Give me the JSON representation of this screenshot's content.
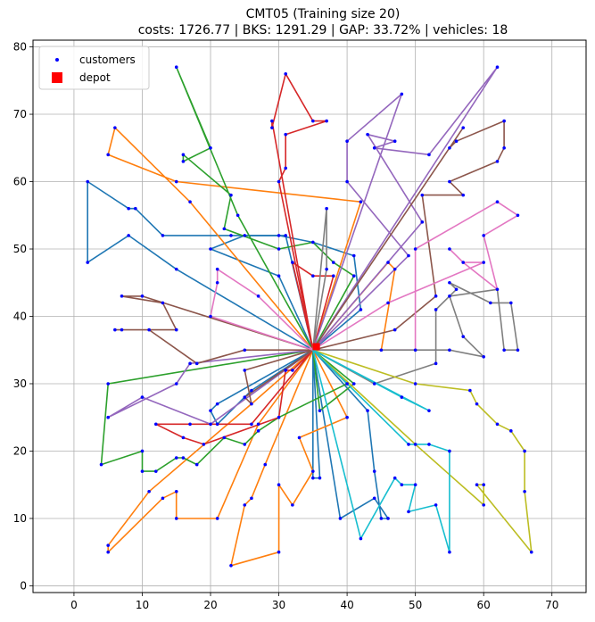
{
  "chart_data": {
    "type": "scatter",
    "title": "CMT05 (Training size 20)",
    "subtitle": "costs: 1726.77 | BKS: 1291.29 | GAP: 33.72% | vehicles: 18",
    "xlabel": "",
    "ylabel": "",
    "xlim": [
      -6,
      75
    ],
    "ylim": [
      -1,
      81
    ],
    "xticks": [
      0,
      10,
      20,
      30,
      40,
      50,
      60,
      70
    ],
    "yticks": [
      0,
      10,
      20,
      30,
      40,
      50,
      60,
      70,
      80
    ],
    "grid": true,
    "legend": {
      "placement": "top-left",
      "entries": [
        {
          "label": "customers",
          "color": "#0000ff",
          "marker": "dot"
        },
        {
          "label": "depot",
          "color": "#ff0000",
          "marker": "square"
        }
      ]
    },
    "depot": {
      "x": 35.5,
      "y": 35.5
    },
    "routes": [
      {
        "color": "#1f77b4",
        "points": [
          [
            35,
            35
          ],
          [
            15,
            47
          ],
          [
            8,
            52
          ],
          [
            2,
            48
          ],
          [
            2,
            60
          ],
          [
            8,
            56
          ],
          [
            9,
            56
          ],
          [
            13,
            52
          ],
          [
            23,
            52
          ],
          [
            30,
            52
          ],
          [
            35,
            51
          ],
          [
            41,
            49
          ],
          [
            42,
            41
          ],
          [
            35,
            35
          ]
        ]
      },
      {
        "color": "#1f77b4",
        "points": [
          [
            35,
            35
          ],
          [
            36,
            16
          ],
          [
            35,
            16
          ],
          [
            35,
            35
          ],
          [
            43,
            26
          ],
          [
            44,
            17
          ],
          [
            45,
            10
          ],
          [
            46,
            10
          ],
          [
            44,
            13
          ],
          [
            39,
            10
          ],
          [
            35,
            35
          ]
        ]
      },
      {
        "color": "#1f77b4",
        "points": [
          [
            35,
            35
          ],
          [
            26,
            29
          ],
          [
            21,
            24
          ],
          [
            20,
            26
          ],
          [
            21,
            27
          ],
          [
            35,
            35
          ]
        ]
      },
      {
        "color": "#1f77b4",
        "points": [
          [
            35,
            35
          ],
          [
            30,
            46
          ],
          [
            20,
            50
          ],
          [
            25,
            52
          ],
          [
            31,
            52
          ],
          [
            35,
            35
          ]
        ]
      },
      {
        "color": "#ff7f0e",
        "points": [
          [
            35,
            35
          ],
          [
            40,
            25
          ],
          [
            33,
            22
          ],
          [
            35,
            17
          ],
          [
            32,
            12
          ],
          [
            30,
            15
          ],
          [
            30,
            5
          ],
          [
            23,
            3
          ],
          [
            25,
            12
          ],
          [
            26,
            13
          ],
          [
            28,
            18
          ],
          [
            35,
            35
          ]
        ]
      },
      {
        "color": "#ff7f0e",
        "points": [
          [
            35,
            35
          ],
          [
            42,
            57
          ],
          [
            15,
            60
          ],
          [
            5,
            64
          ],
          [
            6,
            68
          ],
          [
            17,
            57
          ],
          [
            35,
            35
          ]
        ]
      },
      {
        "color": "#ff7f0e",
        "points": [
          [
            35,
            35
          ],
          [
            27,
            24
          ],
          [
            21,
            10
          ],
          [
            15,
            10
          ],
          [
            15,
            14
          ],
          [
            13,
            13
          ],
          [
            5,
            5
          ],
          [
            5,
            6
          ],
          [
            11,
            14
          ],
          [
            26,
            27
          ],
          [
            35,
            35
          ]
        ]
      },
      {
        "color": "#ff7f0e",
        "points": [
          [
            35,
            35
          ],
          [
            45,
            35
          ],
          [
            47,
            47
          ],
          [
            46,
            48
          ],
          [
            35,
            35
          ]
        ]
      },
      {
        "color": "#2ca02c",
        "points": [
          [
            35,
            35
          ],
          [
            24,
            55
          ],
          [
            15,
            77
          ],
          [
            20,
            65
          ],
          [
            16,
            63
          ],
          [
            16,
            64
          ],
          [
            23,
            58
          ],
          [
            22,
            53
          ],
          [
            30,
            50
          ],
          [
            35,
            51
          ],
          [
            38,
            48
          ],
          [
            41,
            46
          ],
          [
            35,
            35
          ]
        ]
      },
      {
        "color": "#2ca02c",
        "points": [
          [
            35,
            35
          ],
          [
            5,
            30
          ],
          [
            4,
            18
          ],
          [
            10,
            20
          ],
          [
            10,
            17
          ],
          [
            12,
            17
          ],
          [
            15,
            19
          ],
          [
            16,
            19
          ],
          [
            18,
            18
          ],
          [
            22,
            22
          ],
          [
            25,
            21
          ],
          [
            27,
            23
          ],
          [
            30,
            25
          ],
          [
            40,
            30
          ],
          [
            35,
            35
          ]
        ]
      },
      {
        "color": "#2ca02c",
        "points": [
          [
            35,
            35
          ],
          [
            36,
            26
          ],
          [
            41,
            30
          ],
          [
            35,
            35
          ]
        ]
      },
      {
        "color": "#d62728",
        "points": [
          [
            35,
            35
          ],
          [
            29,
            69
          ],
          [
            29,
            68
          ],
          [
            31,
            76
          ],
          [
            35,
            69
          ],
          [
            37,
            69
          ],
          [
            31,
            67
          ],
          [
            31,
            62
          ],
          [
            30,
            60
          ],
          [
            35,
            35
          ]
        ]
      },
      {
        "color": "#d62728",
        "points": [
          [
            35,
            35
          ],
          [
            32,
            32
          ],
          [
            31,
            32
          ],
          [
            30,
            25
          ],
          [
            19,
            21
          ],
          [
            16,
            22
          ],
          [
            12,
            24
          ],
          [
            17,
            24
          ],
          [
            26,
            24
          ],
          [
            35,
            35
          ]
        ]
      },
      {
        "color": "#d62728",
        "points": [
          [
            35,
            35
          ],
          [
            32,
            48
          ],
          [
            35,
            46
          ],
          [
            38,
            46
          ],
          [
            35,
            35
          ]
        ]
      },
      {
        "color": "#9467bd",
        "points": [
          [
            35,
            35
          ],
          [
            48,
            73
          ],
          [
            40,
            66
          ],
          [
            40,
            60
          ],
          [
            49,
            49
          ],
          [
            35,
            35
          ]
        ]
      },
      {
        "color": "#9467bd",
        "points": [
          [
            35,
            35
          ],
          [
            62,
            77
          ],
          [
            52,
            64
          ],
          [
            44,
            65
          ],
          [
            47,
            66
          ],
          [
            43,
            67
          ],
          [
            51,
            54
          ],
          [
            35,
            35
          ]
        ]
      },
      {
        "color": "#9467bd",
        "points": [
          [
            35,
            35
          ],
          [
            17,
            33
          ],
          [
            15,
            30
          ],
          [
            5,
            25
          ],
          [
            10,
            28
          ],
          [
            20,
            24
          ],
          [
            35,
            35
          ]
        ]
      },
      {
        "color": "#8c564b",
        "points": [
          [
            35,
            35
          ],
          [
            10,
            43
          ],
          [
            7,
            43
          ],
          [
            13,
            42
          ],
          [
            15,
            38
          ],
          [
            7,
            38
          ],
          [
            6,
            38
          ],
          [
            11,
            38
          ],
          [
            18,
            33
          ],
          [
            25,
            35
          ],
          [
            35,
            35
          ]
        ]
      },
      {
        "color": "#8c564b",
        "points": [
          [
            35,
            35
          ],
          [
            25,
            32
          ],
          [
            26,
            27
          ],
          [
            25,
            28
          ],
          [
            35,
            35
          ]
        ]
      },
      {
        "color": "#8c564b",
        "points": [
          [
            35,
            35
          ],
          [
            57,
            68
          ],
          [
            55,
            65
          ],
          [
            56,
            66
          ],
          [
            63,
            69
          ],
          [
            63,
            65
          ],
          [
            62,
            63
          ],
          [
            55,
            60
          ],
          [
            57,
            58
          ],
          [
            51,
            58
          ],
          [
            53,
            43
          ],
          [
            47,
            38
          ],
          [
            35,
            35
          ]
        ]
      },
      {
        "color": "#e377c2",
        "points": [
          [
            35,
            35
          ],
          [
            20,
            40
          ],
          [
            21,
            45
          ],
          [
            21,
            47
          ],
          [
            27,
            43
          ],
          [
            35,
            35
          ]
        ]
      },
      {
        "color": "#e377c2",
        "points": [
          [
            35,
            35
          ],
          [
            50,
            35
          ],
          [
            50,
            50
          ],
          [
            62,
            57
          ],
          [
            65,
            55
          ],
          [
            60,
            52
          ],
          [
            62,
            44
          ],
          [
            57,
            48
          ],
          [
            55,
            50
          ],
          [
            57,
            48
          ],
          [
            60,
            48
          ],
          [
            46,
            42
          ],
          [
            35,
            35
          ]
        ]
      },
      {
        "color": "#7f7f7f",
        "points": [
          [
            35,
            35
          ],
          [
            37,
            56
          ],
          [
            37,
            47
          ],
          [
            35,
            35
          ]
        ]
      },
      {
        "color": "#7f7f7f",
        "points": [
          [
            35,
            35
          ],
          [
            44,
            30
          ],
          [
            53,
            33
          ],
          [
            53,
            41
          ],
          [
            56,
            44
          ],
          [
            55,
            45
          ],
          [
            61,
            42
          ],
          [
            64,
            42
          ],
          [
            65,
            35
          ],
          [
            63,
            35
          ],
          [
            62,
            44
          ],
          [
            55,
            43
          ],
          [
            57,
            37
          ],
          [
            60,
            34
          ],
          [
            55,
            35
          ],
          [
            35,
            35
          ]
        ]
      },
      {
        "color": "#bcbd22",
        "points": [
          [
            35,
            35
          ],
          [
            50,
            30
          ],
          [
            58,
            29
          ],
          [
            59,
            27
          ],
          [
            62,
            24
          ],
          [
            64,
            23
          ],
          [
            66,
            20
          ],
          [
            66,
            14
          ],
          [
            67,
            5
          ],
          [
            59,
            15
          ],
          [
            60,
            15
          ],
          [
            60,
            12
          ],
          [
            50,
            21
          ],
          [
            35,
            35
          ]
        ]
      },
      {
        "color": "#17becf",
        "points": [
          [
            35,
            35
          ],
          [
            49,
            21
          ],
          [
            52,
            21
          ],
          [
            55,
            20
          ],
          [
            55,
            5
          ],
          [
            53,
            12
          ],
          [
            49,
            11
          ],
          [
            50,
            15
          ],
          [
            48,
            15
          ],
          [
            47,
            16
          ],
          [
            42,
            7
          ],
          [
            35,
            35
          ]
        ]
      },
      {
        "color": "#17becf",
        "points": [
          [
            35,
            35
          ],
          [
            52,
            26
          ],
          [
            48,
            28
          ],
          [
            35,
            35
          ]
        ]
      }
    ]
  }
}
